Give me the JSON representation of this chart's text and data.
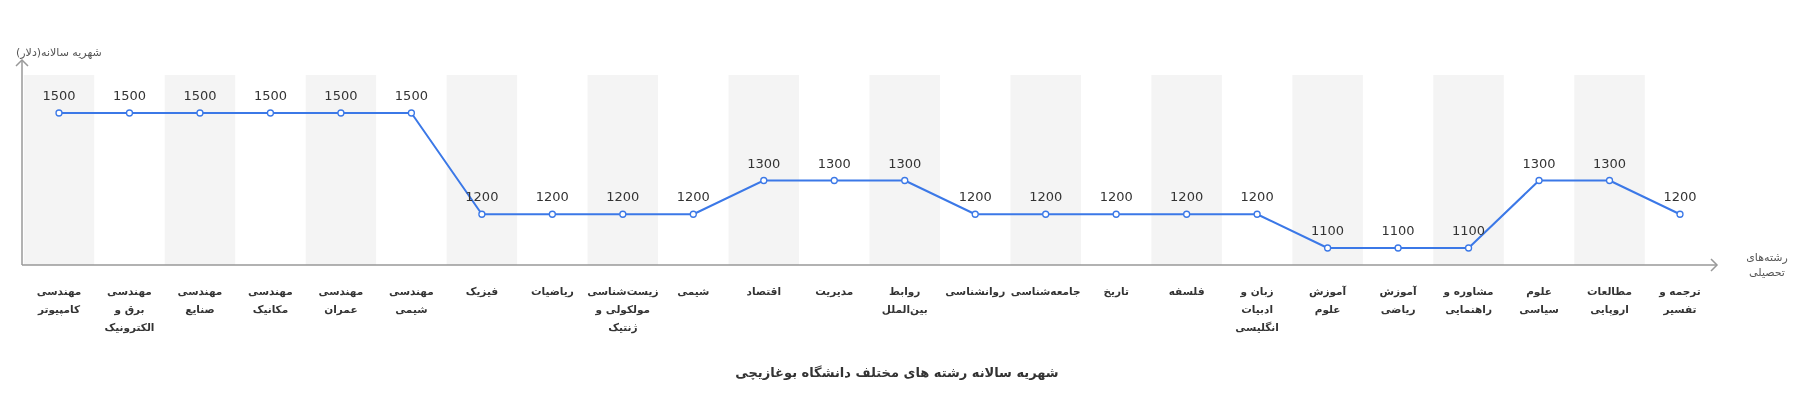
{
  "chart_data": {
    "type": "line",
    "title": "شهریه سالانه رشته های مختلف دانشگاه بوغازیچی",
    "ylabel": "شهریه سالانه(دلار)",
    "xlabel": "رشته‌های تحصیلی",
    "categories": [
      "مهندسی کامپیوتر",
      "مهندسی برق و الکترونیک",
      "مهندسی صنایع",
      "مهندسی مکانیک",
      "مهندسی عمران",
      "مهندسی شیمی",
      "فیزیک",
      "ریاضیات",
      "زیست‌شناسی مولکولی و ژنتیک",
      "شیمی",
      "اقتصاد",
      "مدیریت",
      "روابط بین‌الملل",
      "روانشناسی",
      "جامعه‌شناسی",
      "تاریخ",
      "فلسفه",
      "زبان و ادبیات انگلیسی",
      "آموزش علوم",
      "آموزش ریاضی",
      "مشاوره و راهنمایی",
      "علوم سیاسی",
      "مطالعات اروپایی",
      "ترجمه و تفسیر"
    ],
    "series": [
      {
        "color": "#3b78e7",
        "values": [
          1500,
          1500,
          1500,
          1500,
          1500,
          1500,
          1200,
          1200,
          1200,
          1200,
          1300,
          1300,
          1300,
          1200,
          1200,
          1200,
          1200,
          1200,
          1100,
          1100,
          1100,
          1300,
          1300,
          1200
        ]
      }
    ],
    "tick_labels": "x",
    "data_labels": true,
    "marker": "circle",
    "line_style": "solid"
  }
}
